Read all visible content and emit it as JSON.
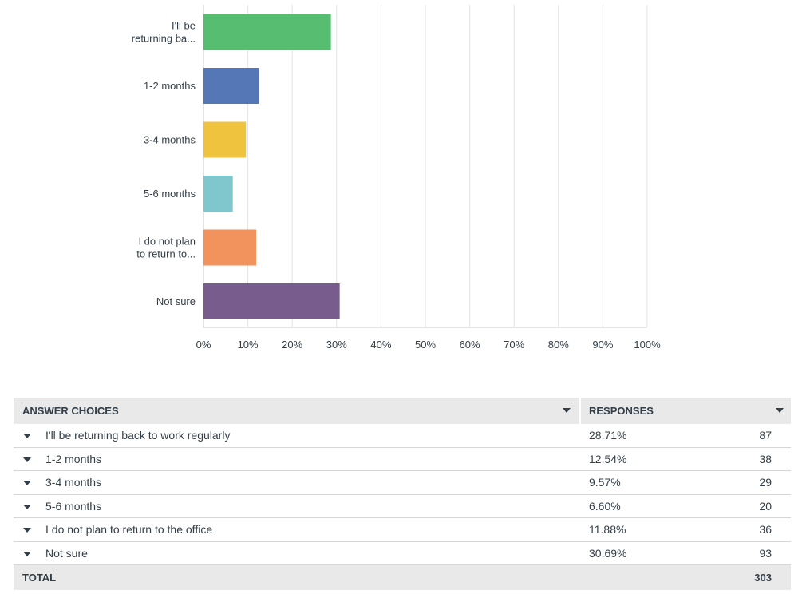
{
  "chart_data": {
    "type": "bar",
    "orientation": "horizontal",
    "categories": [
      [
        "I'll be",
        "returning ba..."
      ],
      [
        "1-2 months"
      ],
      [
        "3-4 months"
      ],
      [
        "5-6 months"
      ],
      [
        "I do not plan",
        "to return to..."
      ],
      [
        "Not sure"
      ]
    ],
    "values": [
      28.71,
      12.54,
      9.57,
      6.6,
      11.88,
      30.69
    ],
    "colors": [
      "#57bd70",
      "#5577b5",
      "#f0c33f",
      "#7fc7cc",
      "#f2925d",
      "#785c8e"
    ],
    "xlim": [
      0,
      100
    ],
    "xticks": [
      "0%",
      "10%",
      "20%",
      "30%",
      "40%",
      "50%",
      "60%",
      "70%",
      "80%",
      "90%",
      "100%"
    ],
    "grid": true,
    "title": "",
    "xlabel": "",
    "ylabel": ""
  },
  "table": {
    "headers": {
      "answer": "ANSWER CHOICES",
      "responses": "RESPONSES"
    },
    "rows": [
      {
        "answer": "I'll be returning back to work regularly",
        "percent": "28.71%",
        "count": "87"
      },
      {
        "answer": "1-2 months",
        "percent": "12.54%",
        "count": "38"
      },
      {
        "answer": "3-4 months",
        "percent": "9.57%",
        "count": "29"
      },
      {
        "answer": "5-6 months",
        "percent": "6.60%",
        "count": "20"
      },
      {
        "answer": "I do not plan to return to the office",
        "percent": "11.88%",
        "count": "36"
      },
      {
        "answer": "Not sure",
        "percent": "30.69%",
        "count": "93"
      }
    ],
    "total_label": "TOTAL",
    "total_value": "303"
  }
}
